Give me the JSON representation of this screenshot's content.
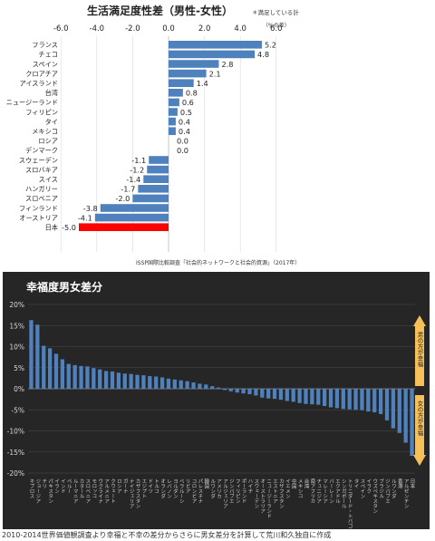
{
  "chart_data": [
    {
      "type": "bar",
      "orientation": "horizontal",
      "title": "生活満足度性差（男性-女性）",
      "title_note": "＊満足している計",
      "unit_label": "（%の差）",
      "source": "ISSP国際比較調査「社会的ネットワークと社会的資源」（2017年）",
      "xlim": [
        -6.0,
        6.0
      ],
      "xticks": [
        "-6.0",
        "-4.0",
        "-2.0",
        "0.0",
        "2.0",
        "4.0",
        "6.0"
      ],
      "categories": [
        "フランス",
        "チェコ",
        "スペイン",
        "クロアチア",
        "アイスランド",
        "台湾",
        "ニュージーランド",
        "フィリピン",
        "タイ",
        "メキシコ",
        "ロシア",
        "デンマーク",
        "スウェーデン",
        "スロバキア",
        "スイス",
        "ハンガリー",
        "スロベニア",
        "フィンランド",
        "オーストリア",
        "日本"
      ],
      "values": [
        5.2,
        4.8,
        2.8,
        2.1,
        1.4,
        0.8,
        0.6,
        0.5,
        0.4,
        0.4,
        0.0,
        0.0,
        -1.1,
        -1.2,
        -1.4,
        -1.7,
        -2.0,
        -3.8,
        -4.1,
        -5.0
      ],
      "value_labels": [
        "5.2",
        "4.8",
        "2.8",
        "2.1",
        "1.4",
        "0.8",
        "0.6",
        "0.5",
        "0.4",
        "0.4",
        "0.0",
        "0.0",
        "-1.1",
        "-1.2",
        "-1.4",
        "-1.7",
        "-2.0",
        "-3.8",
        "-4.1",
        "-5.0"
      ],
      "highlight": "日本",
      "colors": {
        "bar": "#4f81bd",
        "highlight": "#ff0000"
      }
    },
    {
      "type": "bar",
      "title": "幸福度男女差分",
      "ylim": [
        -20,
        20
      ],
      "yticks": [
        "20%",
        "15%",
        "10%",
        "5%",
        "0%",
        "-5%",
        "-10%",
        "-15%",
        "-20%"
      ],
      "annotation_up": "男の方が幸福",
      "annotation_down": "女の方が幸福",
      "categories": [
        "キプロス",
        "ジョージア",
        "チリ",
        "パキスタン",
        "イラン",
        "インド",
        "ペルー",
        "ルーマニア",
        "カタール",
        "スロベニア",
        "モロッコ",
        "ウクライナ",
        "アルメニア",
        "クウェート",
        "ロシア",
        "ガーナ",
        "ナイジェリア",
        "カザフスタン",
        "エジプト",
        "ドイツ",
        "トルコ",
        "オランダ",
        "レバノン",
        "ヨルダン",
        "ベラルーシ",
        "リビア",
        "コロンビア",
        "パレスチナ",
        "韓国",
        "ルワンダ",
        "アメリカ",
        "アルジェリア",
        "ジンバブエ",
        "フィリピン",
        "ポーランド",
        "ハイチ",
        "スウェーデン",
        "オーストラリア",
        "ニュージーランド",
        "エストニア",
        "カザフスタン",
        "イエメン",
        "中国",
        "メキシコ",
        "台湾",
        "南アフリカ",
        "チュニジア",
        "マレーシア",
        "バーレーン",
        "エクアドル",
        "シンガポール",
        "トリニダード・トバゴ",
        "タイ",
        "スペイン",
        "イラク",
        "ウズベキスタン",
        "ブラジル",
        "ジンバブエ",
        "ルワンダ",
        "香港",
        "アルゼンチン",
        "日本"
      ],
      "values": [
        16.3,
        15.2,
        10.2,
        9.6,
        8.3,
        7.0,
        5.9,
        5.6,
        5.4,
        5.3,
        4.9,
        4.6,
        4.2,
        4.1,
        3.8,
        3.6,
        3.5,
        3.3,
        3.2,
        3.0,
        2.9,
        2.7,
        2.4,
        2.2,
        2.0,
        1.8,
        1.5,
        1.2,
        1.0,
        0.6,
        0.3,
        -0.3,
        -0.6,
        -0.9,
        -1.1,
        -1.3,
        -1.6,
        -2.1,
        -2.3,
        -2.4,
        -2.6,
        -2.9,
        -3.1,
        -3.4,
        -3.6,
        -3.7,
        -3.8,
        -4.1,
        -4.4,
        -4.6,
        -4.8,
        -4.9,
        -5.0,
        -5.1,
        -5.4,
        -5.6,
        -6.0,
        -7.5,
        -9.4,
        -10.5,
        -12.8,
        -15.9
      ],
      "colors": {
        "bar": "#4f81bd",
        "background": "#262626",
        "arrow": "#f5c05a"
      }
    }
  ],
  "footer": "2010-2014世界価値観調査より幸福と不幸の差分からさらに男女差分を計算して荒川和久独自に作成"
}
